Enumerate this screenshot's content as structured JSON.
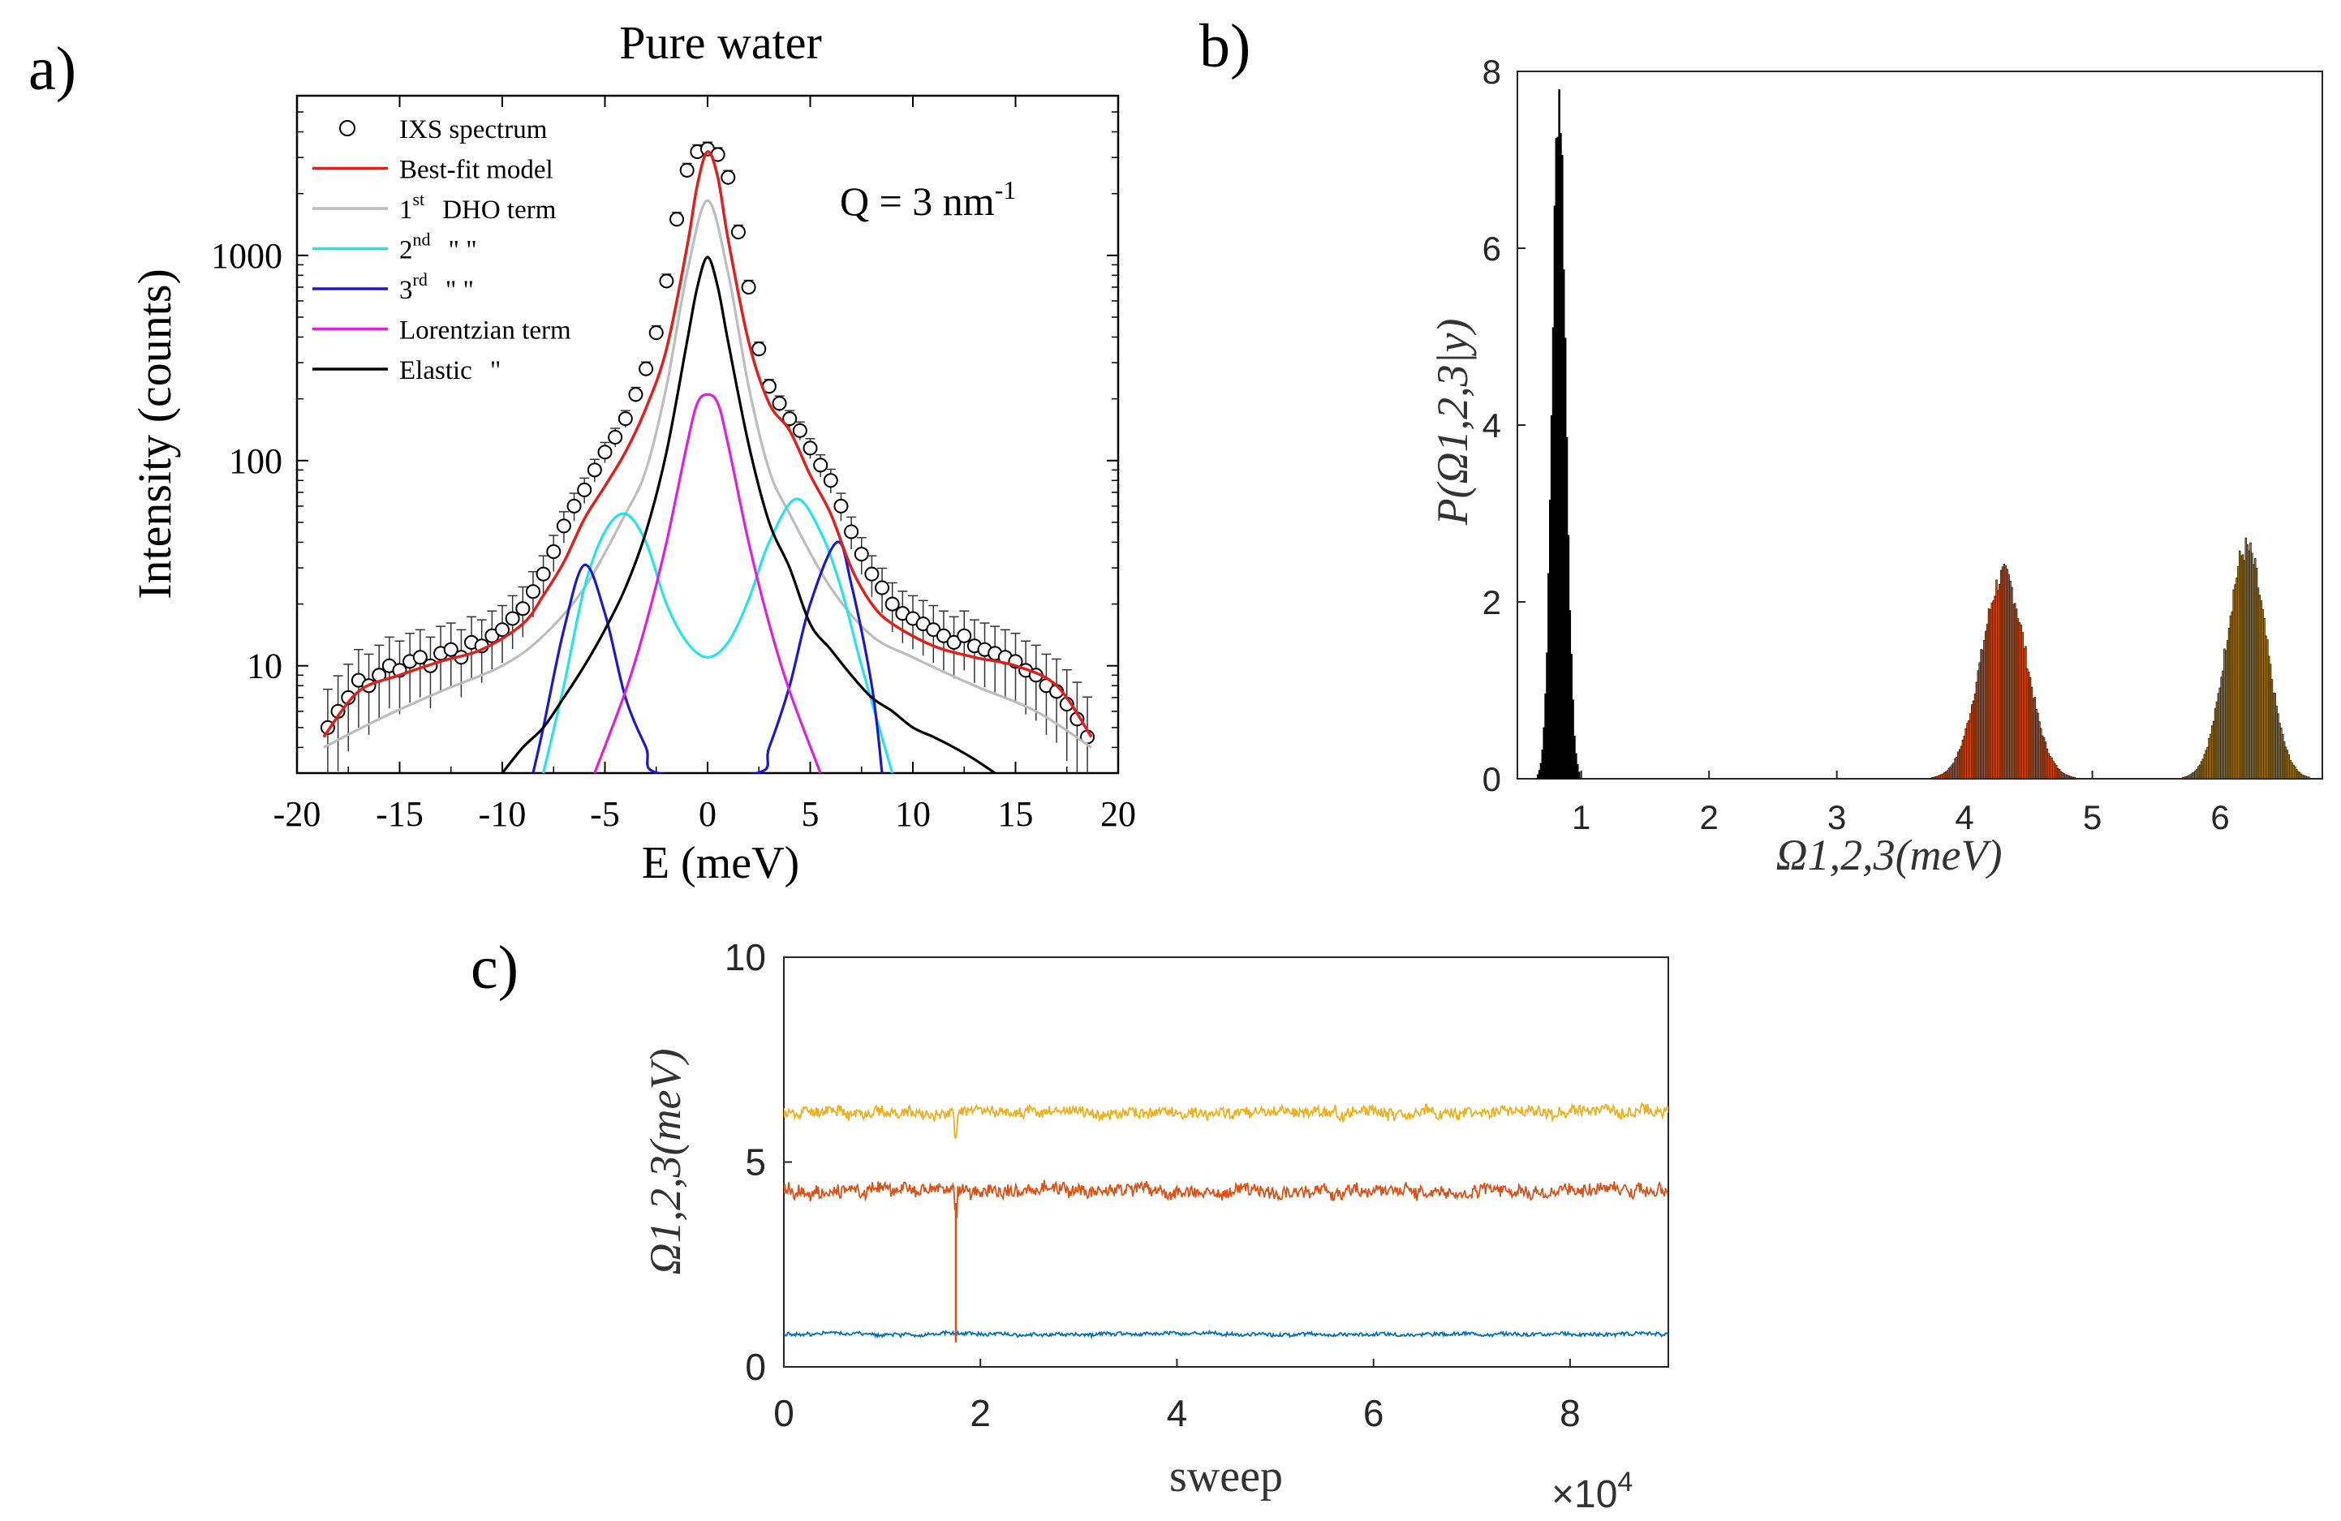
{
  "figure": {
    "panel_labels": [
      "a)",
      "b)",
      "c)"
    ]
  },
  "chart_data": [
    {
      "id": "a",
      "type": "line",
      "title": "Pure water",
      "annotation": {
        "text": "Q = 3 nm",
        "superscript": "-1"
      },
      "xlabel": "E (meV)",
      "ylabel": "Intensity (counts)",
      "xlim": [
        -20,
        20
      ],
      "ylim": [
        3,
        6000
      ],
      "yscale": "log",
      "xticks": [
        -20,
        -15,
        -10,
        -5,
        0,
        5,
        10,
        15,
        20
      ],
      "yticks": [
        10,
        100,
        1000
      ],
      "legend_position": "top-left",
      "legend": [
        {
          "label": "IXS spectrum",
          "base": "IXS spectrum",
          "sup": "",
          "marker": "circle",
          "color": "#000000"
        },
        {
          "label": "Best-fit model",
          "base": "Best-fit model",
          "sup": "",
          "color": "#e0201b"
        },
        {
          "label": "1st DHO term",
          "base": "1",
          "sup": "st",
          "rest": "DHO term",
          "color": "#bdbdbd"
        },
        {
          "label": "2nd \" \"",
          "base": "2",
          "sup": "nd",
          "rest": "\"       \"",
          "color": "#24e3ee"
        },
        {
          "label": "3rd \" \"",
          "base": "3",
          "sup": "rd",
          "rest": "\"       \"",
          "color": "#1a1acc"
        },
        {
          "label": "Lorentzian term",
          "base": "Lorentzian  term",
          "sup": "",
          "color": "#e01ee0"
        },
        {
          "label": "Elastic \"",
          "base": "Elastic",
          "sup": "",
          "rest": "\"",
          "color": "#000000"
        }
      ],
      "series": [
        {
          "name": "Best-fit model",
          "color": "#e0201b",
          "x": [
            -18.7,
            -17,
            -15,
            -13,
            -11,
            -9,
            -8,
            -7,
            -6,
            -5,
            -4,
            -3,
            -2,
            -1,
            -0.5,
            0,
            0.5,
            1,
            2,
            3,
            4,
            5,
            6,
            7,
            8,
            9,
            11,
            13,
            15,
            17,
            18.7
          ],
          "y": [
            4.5,
            7.5,
            9,
            10.5,
            12,
            16,
            22,
            32,
            52,
            75,
            110,
            180,
            350,
            1100,
            2200,
            3200,
            2400,
            1200,
            380,
            190,
            140,
            85,
            55,
            30,
            20,
            16,
            12.5,
            11,
            10,
            8,
            4.5
          ]
        },
        {
          "name": "1st DHO term",
          "color": "#bdbdbd",
          "x": [
            -18.7,
            -16,
            -13,
            -10,
            -8,
            -6,
            -4,
            -3,
            -2,
            -1,
            0,
            1,
            2,
            3,
            4,
            6,
            8,
            10,
            13,
            16,
            18.7
          ],
          "y": [
            4,
            5.5,
            7.5,
            10,
            14,
            24,
            55,
            90,
            230,
            820,
            1850,
            820,
            230,
            90,
            55,
            24,
            14,
            11,
            8,
            6,
            4
          ]
        },
        {
          "name": "2nd DHO term",
          "color": "#24e3ee",
          "x": [
            -8,
            -7,
            -6,
            -5,
            -4,
            -3,
            -2,
            -1,
            0,
            1,
            2,
            3,
            4.3,
            5.5,
            6.5,
            7.5,
            9
          ],
          "y": [
            3,
            8,
            24,
            45,
            55,
            40,
            20,
            13,
            11,
            13,
            21,
            40,
            65,
            45,
            24,
            10,
            3
          ]
        },
        {
          "name": "3rd DHO term",
          "color": "#1a1acc",
          "x": [
            -8.5,
            -8,
            -7,
            -6,
            -5,
            -4,
            -3,
            -2.4,
            2.4,
            3,
            4,
            5,
            6.3,
            7,
            8,
            8.5
          ],
          "y": [
            3,
            5,
            15,
            31,
            18,
            7,
            4,
            3,
            3,
            4,
            8,
            20,
            40,
            25,
            8,
            3
          ]
        },
        {
          "name": "Lorentzian term",
          "color": "#e01ee0",
          "x": [
            -5.5,
            -4,
            -3,
            -2,
            -1,
            -0.5,
            0,
            0.5,
            1,
            2,
            3,
            4,
            5.5
          ],
          "y": [
            3,
            7.5,
            16,
            40,
            120,
            190,
            210,
            190,
            120,
            40,
            16,
            7.5,
            3
          ]
        },
        {
          "name": "Elastic term",
          "color": "#000000",
          "x": [
            -10,
            -9,
            -8,
            -7,
            -6,
            -5,
            -4,
            -3,
            -2,
            -1,
            -0.5,
            0,
            0.5,
            1,
            2,
            3,
            4,
            5,
            6,
            7,
            8,
            9,
            10,
            11,
            12,
            13,
            14
          ],
          "y": [
            3,
            4,
            5,
            7,
            10,
            15,
            24,
            45,
            110,
            380,
            700,
            980,
            700,
            380,
            120,
            50,
            30,
            16,
            12,
            9,
            7,
            6,
            5,
            4.5,
            4,
            3.5,
            3
          ]
        }
      ],
      "scatter": {
        "name": "IXS spectrum",
        "x": [
          -18.5,
          -18,
          -17.5,
          -17,
          -16.5,
          -16,
          -15.5,
          -15,
          -14.5,
          -14,
          -13.5,
          -13,
          -12.5,
          -12,
          -11.5,
          -11,
          -10.5,
          -10,
          -9.5,
          -9,
          -8.5,
          -8,
          -7.5,
          -7,
          -6.5,
          -6,
          -5.5,
          -5,
          -4.5,
          -4,
          -3.5,
          -3,
          -2.5,
          -2,
          -1.5,
          -1,
          -0.5,
          0,
          0.5,
          1,
          1.5,
          2,
          2.5,
          3,
          3.5,
          4,
          4.5,
          5,
          5.5,
          6,
          6.5,
          7,
          7.5,
          8,
          8.5,
          9,
          9.5,
          10,
          10.5,
          11,
          11.5,
          12,
          12.5,
          13,
          13.5,
          14,
          14.5,
          15,
          15.5,
          16,
          16.5,
          17,
          17.5,
          18,
          18.5
        ],
        "y": [
          5,
          6,
          7,
          8.5,
          8,
          9,
          10,
          9.5,
          10.5,
          11,
          10,
          11.5,
          12,
          11,
          13,
          12.5,
          14,
          15,
          17,
          19,
          23,
          28,
          36,
          48,
          60,
          72,
          90,
          110,
          130,
          160,
          210,
          280,
          420,
          750,
          1500,
          2600,
          3200,
          3300,
          3100,
          2400,
          1300,
          700,
          350,
          230,
          190,
          160,
          140,
          115,
          95,
          80,
          60,
          45,
          35,
          28,
          24,
          20,
          18,
          17,
          16,
          15,
          14,
          13,
          14,
          12.5,
          12,
          11.5,
          11,
          10.5,
          9.5,
          9,
          8,
          7.5,
          6.5,
          5.5,
          4.5
        ]
      }
    },
    {
      "id": "b",
      "type": "bar",
      "title": "",
      "xlabel": "Ω1,2,3(meV)",
      "ylabel": "P(Ω1,2,3|y)",
      "xlim": [
        0.5,
        6.8
      ],
      "ylim": [
        0,
        8
      ],
      "xticks": [
        1,
        2,
        3,
        4,
        5,
        6
      ],
      "yticks": [
        0,
        2,
        4,
        6,
        8
      ],
      "series": [
        {
          "name": "Ω1",
          "color": "#000000",
          "center": 0.82,
          "sigma": 0.052,
          "peak": 7.8
        },
        {
          "name": "Ω2",
          "color": "#d95319",
          "center": 4.3,
          "sigma": 0.175,
          "peak": 2.3
        },
        {
          "name": "Ω3",
          "color": "#a87a1e",
          "center": 6.2,
          "sigma": 0.155,
          "peak": 2.6
        }
      ]
    },
    {
      "id": "c",
      "type": "line",
      "title": "",
      "xlabel": "sweep",
      "ylabel": "Ω1,2,3(meV)",
      "x_multiplier": "×10",
      "x_multiplier_exp": "4",
      "xlim": [
        0,
        9
      ],
      "ylim": [
        0,
        10
      ],
      "xticks": [
        0,
        2,
        4,
        6,
        8
      ],
      "yticks": [
        0,
        5,
        10
      ],
      "series": [
        {
          "name": "Ω3 trace",
          "color": "#edb120",
          "mean": 6.2,
          "noise": 0.13
        },
        {
          "name": "Ω2 trace",
          "color": "#d95319",
          "mean": 4.3,
          "noise": 0.15
        },
        {
          "name": "Ω1 trace",
          "color": "#0072bd",
          "mean": 0.8,
          "noise": 0.04
        }
      ],
      "spike": {
        "x": 1.75,
        "y_from": 0.6,
        "y_to": 4.0
      }
    }
  ]
}
